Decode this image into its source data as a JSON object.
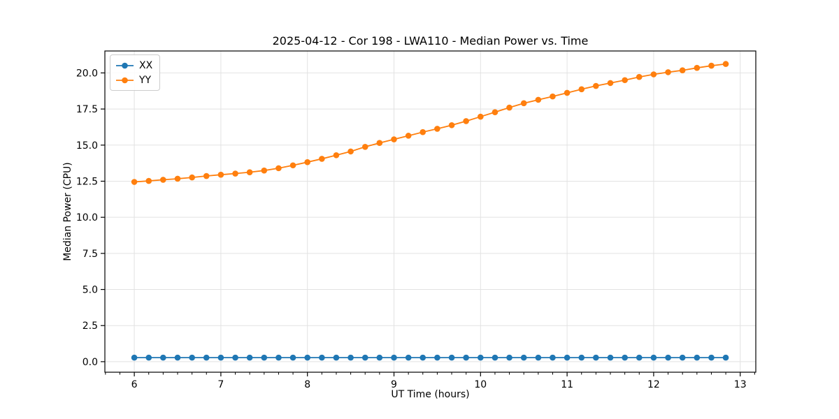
{
  "figure": {
    "title": "2025-04-12 - Cor 198 - LWA110 - Median Power vs. Time",
    "xlabel": "UT Time (hours)",
    "ylabel": "Median Power (CPU)",
    "background_color": "#ffffff",
    "axes_color": "#000000",
    "grid_color": "#e2e2e2"
  },
  "chart_data": {
    "type": "line",
    "title": "2025-04-12 - Cor 198 - LWA110 - Median Power vs. Time",
    "xlabel": "UT Time (hours)",
    "ylabel": "Median Power (CPU)",
    "x": [
      6.0,
      6.167,
      6.333,
      6.5,
      6.667,
      6.833,
      7.0,
      7.167,
      7.333,
      7.5,
      7.667,
      7.833,
      8.0,
      8.167,
      8.333,
      8.5,
      8.667,
      8.833,
      9.0,
      9.167,
      9.333,
      9.5,
      9.667,
      9.833,
      10.0,
      10.167,
      10.333,
      10.5,
      10.667,
      10.833,
      11.0,
      11.167,
      11.333,
      11.5,
      11.667,
      11.833,
      12.0,
      12.167,
      12.333,
      12.5,
      12.667,
      12.833
    ],
    "series": [
      {
        "name": "XX",
        "color": "#1f77b4",
        "marker": "circle",
        "values": [
          0.28,
          0.28,
          0.28,
          0.28,
          0.28,
          0.28,
          0.28,
          0.28,
          0.28,
          0.28,
          0.28,
          0.28,
          0.28,
          0.28,
          0.28,
          0.28,
          0.28,
          0.28,
          0.28,
          0.28,
          0.28,
          0.28,
          0.28,
          0.28,
          0.28,
          0.28,
          0.28,
          0.28,
          0.28,
          0.28,
          0.28,
          0.28,
          0.28,
          0.28,
          0.28,
          0.28,
          0.28,
          0.28,
          0.28,
          0.28,
          0.28,
          0.28
        ]
      },
      {
        "name": "YY",
        "color": "#ff7f0e",
        "marker": "circle",
        "values": [
          12.45,
          12.52,
          12.6,
          12.67,
          12.76,
          12.86,
          12.95,
          13.03,
          13.12,
          13.24,
          13.4,
          13.6,
          13.82,
          14.05,
          14.3,
          14.56,
          14.88,
          15.15,
          15.4,
          15.65,
          15.9,
          16.13,
          16.38,
          16.66,
          16.97,
          17.28,
          17.6,
          17.9,
          18.14,
          18.37,
          18.62,
          18.87,
          19.1,
          19.3,
          19.5,
          19.72,
          19.9,
          20.05,
          20.18,
          20.35,
          20.5,
          20.62
        ]
      }
    ],
    "xlim": [
      5.66,
      13.18
    ],
    "ylim": [
      -0.73,
      21.52
    ],
    "xticks": [
      6,
      7,
      8,
      9,
      10,
      11,
      12,
      13
    ],
    "xtick_labels": [
      "6",
      "7",
      "8",
      "9",
      "10",
      "11",
      "12",
      "13"
    ],
    "yticks": [
      0.0,
      2.5,
      5.0,
      7.5,
      10.0,
      12.5,
      15.0,
      17.5,
      20.0
    ],
    "ytick_labels": [
      "0.0",
      "2.5",
      "5.0",
      "7.5",
      "10.0",
      "12.5",
      "15.0",
      "17.5",
      "20.0"
    ],
    "minor_xtick_step": 0.1667,
    "grid": true,
    "legend": {
      "position": "upper left",
      "entries": [
        "XX",
        "YY"
      ]
    }
  }
}
